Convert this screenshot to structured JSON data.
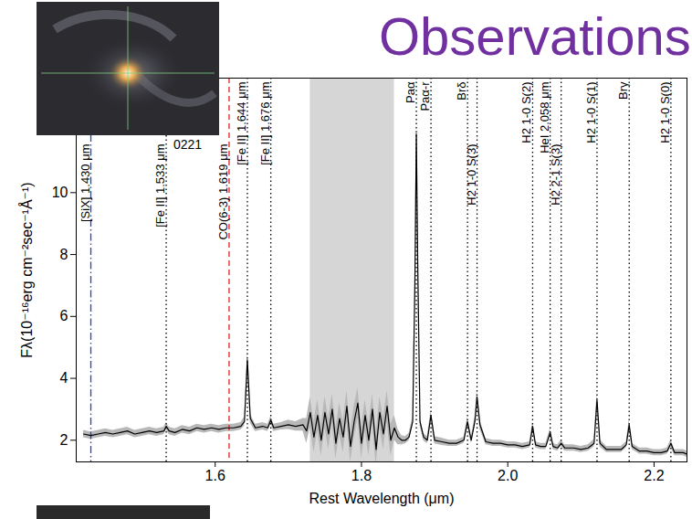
{
  "slide": {
    "title": "Observations"
  },
  "chart_data": {
    "type": "line",
    "title": "0221",
    "x_label": "Rest Wavelength (μm)",
    "y_label": "Fλ(10⁻¹⁶erg cm⁻²sec⁻¹Å⁻¹)",
    "xlim": [
      1.41,
      2.245
    ],
    "xticks": [
      1.6,
      1.8,
      {
        "value": 2.0,
        "label": "2.0"
      },
      2.2
    ],
    "ylim": [
      1.3,
      13.7
    ],
    "yticks": [
      2,
      4,
      6,
      8,
      10
    ],
    "grid": false,
    "color": "#000000",
    "x": [
      1.42,
      1.43,
      1.44,
      1.45,
      1.46,
      1.47,
      1.48,
      1.49,
      1.5,
      1.51,
      1.52,
      1.53,
      1.533,
      1.537,
      1.545,
      1.555,
      1.565,
      1.575,
      1.585,
      1.595,
      1.605,
      1.615,
      1.625,
      1.635,
      1.64,
      1.644,
      1.648,
      1.655,
      1.665,
      1.672,
      1.676,
      1.68,
      1.69,
      1.7,
      1.71,
      1.72,
      1.725,
      1.73,
      1.735,
      1.74,
      1.745,
      1.75,
      1.755,
      1.76,
      1.765,
      1.77,
      1.775,
      1.78,
      1.785,
      1.79,
      1.795,
      1.8,
      1.805,
      1.81,
      1.815,
      1.82,
      1.825,
      1.83,
      1.835,
      1.84,
      1.845,
      1.85,
      1.855,
      1.86,
      1.865,
      1.87,
      1.873,
      1.875,
      1.877,
      1.88,
      1.885,
      1.89,
      1.895,
      1.9,
      1.91,
      1.92,
      1.93,
      1.94,
      1.945,
      1.95,
      1.955,
      1.958,
      1.962,
      1.97,
      1.98,
      1.99,
      2.0,
      2.01,
      2.02,
      2.03,
      2.034,
      2.038,
      2.045,
      2.052,
      2.058,
      2.062,
      2.068,
      2.073,
      2.078,
      2.09,
      2.1,
      2.11,
      2.118,
      2.122,
      2.126,
      2.135,
      2.145,
      2.155,
      2.162,
      2.166,
      2.17,
      2.18,
      2.19,
      2.2,
      2.21,
      2.218,
      2.223,
      2.228,
      2.24,
      2.245
    ],
    "values": [
      2.2,
      2.15,
      2.2,
      2.25,
      2.2,
      2.25,
      2.3,
      2.2,
      2.25,
      2.3,
      2.25,
      2.3,
      2.45,
      2.3,
      2.25,
      2.35,
      2.3,
      2.4,
      2.35,
      2.4,
      2.35,
      2.4,
      2.4,
      2.45,
      2.6,
      4.6,
      2.7,
      2.4,
      2.45,
      2.4,
      2.65,
      2.4,
      2.45,
      2.5,
      2.45,
      2.5,
      2.3,
      2.9,
      2.1,
      2.8,
      2.0,
      2.9,
      2.2,
      3.0,
      1.9,
      2.7,
      2.1,
      3.1,
      1.8,
      2.6,
      3.2,
      1.9,
      2.8,
      2.0,
      3.0,
      1.7,
      2.9,
      2.2,
      3.1,
      2.0,
      2.4,
      2.1,
      2.0,
      2.0,
      2.1,
      2.6,
      7.0,
      11.9,
      7.5,
      2.6,
      2.1,
      2.0,
      2.8,
      2.0,
      1.95,
      1.9,
      1.9,
      2.0,
      2.6,
      2.0,
      2.6,
      3.4,
      2.5,
      1.95,
      1.9,
      1.9,
      1.85,
      1.85,
      1.8,
      1.85,
      2.45,
      1.85,
      1.8,
      1.8,
      2.25,
      1.8,
      1.75,
      1.9,
      1.75,
      1.75,
      1.7,
      1.75,
      1.9,
      3.3,
      1.9,
      1.7,
      1.7,
      1.7,
      1.85,
      2.5,
      1.8,
      1.65,
      1.65,
      1.6,
      1.6,
      1.65,
      1.9,
      1.6,
      1.6,
      1.55
    ],
    "errors": [
      0.12,
      0.12,
      0.12,
      0.12,
      0.12,
      0.12,
      0.12,
      0.12,
      0.12,
      0.12,
      0.12,
      0.12,
      0.12,
      0.12,
      0.12,
      0.12,
      0.12,
      0.12,
      0.12,
      0.12,
      0.12,
      0.12,
      0.12,
      0.12,
      0.15,
      0.25,
      0.15,
      0.12,
      0.12,
      0.12,
      0.12,
      0.12,
      0.12,
      0.15,
      0.15,
      0.2,
      0.4,
      0.5,
      0.5,
      0.5,
      0.5,
      0.5,
      0.5,
      0.5,
      0.5,
      0.5,
      0.5,
      0.5,
      0.5,
      0.5,
      0.5,
      0.5,
      0.5,
      0.5,
      0.5,
      0.5,
      0.5,
      0.5,
      0.5,
      0.5,
      0.4,
      0.25,
      0.15,
      0.12,
      0.12,
      0.15,
      0.3,
      0.4,
      0.3,
      0.15,
      0.12,
      0.12,
      0.15,
      0.12,
      0.12,
      0.1,
      0.1,
      0.1,
      0.15,
      0.1,
      0.15,
      0.2,
      0.15,
      0.1,
      0.1,
      0.1,
      0.1,
      0.1,
      0.1,
      0.1,
      0.15,
      0.1,
      0.1,
      0.1,
      0.12,
      0.1,
      0.1,
      0.1,
      0.1,
      0.1,
      0.1,
      0.1,
      0.12,
      0.2,
      0.12,
      0.1,
      0.1,
      0.1,
      0.1,
      0.15,
      0.1,
      0.1,
      0.1,
      0.1,
      0.1,
      0.1,
      0.12,
      0.1,
      0.1,
      0.1
    ],
    "bands": [
      {
        "x1": 1.73,
        "x2": 1.845
      }
    ],
    "lines": [
      {
        "x": 1.43,
        "label": "[SiX] 1.430 μm",
        "color": "#1f3fd0",
        "line_style": "dashdot"
      },
      {
        "x": 1.533,
        "label": "[Fe II] 1.533 μm",
        "color": "#000000",
        "line_style": "dotted"
      },
      {
        "x": 1.619,
        "label": "CO(6-3) 1.619 μm",
        "color": "#e02020",
        "line_style": "dashed"
      },
      {
        "x": 1.644,
        "label": "[Fe II] 1.644 μm",
        "color": "#000000",
        "line_style": "dotted"
      },
      {
        "x": 1.676,
        "label": "[Fe II] 1.676 μm",
        "color": "#000000",
        "line_style": "dotted"
      },
      {
        "x": 1.875,
        "label": "Paα",
        "color": "#000000",
        "line_style": "dotted"
      },
      {
        "x": 1.895,
        "label": "Paα-r",
        "color": "#000000",
        "line_style": "dotted"
      },
      {
        "x": 1.945,
        "label": "Brδ",
        "color": "#000000",
        "line_style": "dotted"
      },
      {
        "x": 1.958,
        "label": "H2 1-0 S(3)",
        "color": "#000000",
        "line_style": "dotted"
      },
      {
        "x": 2.034,
        "label": "H2 1-0 S(2)",
        "color": "#000000",
        "line_style": "dotted"
      },
      {
        "x": 2.058,
        "label": "HeI 2.058 μm",
        "color": "#000000",
        "line_style": "dotted"
      },
      {
        "x": 2.073,
        "label": "H2 2-1 S(3)",
        "color": "#000000",
        "line_style": "dotted"
      },
      {
        "x": 2.122,
        "label": "H2 1-0 S(1)",
        "color": "#000000",
        "line_style": "dotted"
      },
      {
        "x": 2.166,
        "label": "Brγ",
        "color": "#000000",
        "line_style": "dotted"
      },
      {
        "x": 2.223,
        "label": "H2 1-0 S(0)",
        "color": "#000000",
        "line_style": "dotted"
      }
    ]
  }
}
